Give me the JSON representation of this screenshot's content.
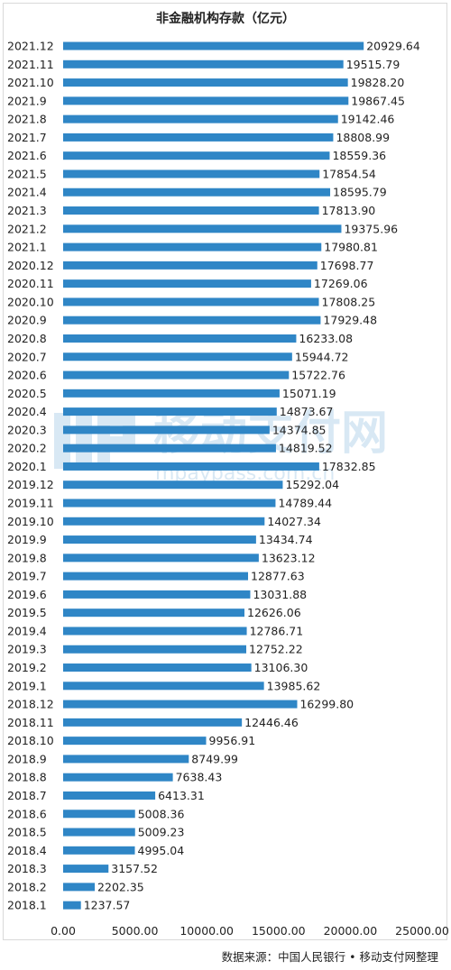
{
  "chart_data": {
    "type": "bar",
    "orientation": "horizontal",
    "title": "非金融机构存款（亿元）",
    "categories": [
      "2021.12",
      "2021.11",
      "2021.10",
      "2021.9",
      "2021.8",
      "2021.7",
      "2021.6",
      "2021.5",
      "2021.4",
      "2021.3",
      "2021.2",
      "2021.1",
      "2020.12",
      "2020.11",
      "2020.10",
      "2020.9",
      "2020.8",
      "2020.7",
      "2020.6",
      "2020.5",
      "2020.4",
      "2020.3",
      "2020.2",
      "2020.1",
      "2019.12",
      "2019.11",
      "2019.10",
      "2019.9",
      "2019.8",
      "2019.7",
      "2019.6",
      "2019.5",
      "2019.4",
      "2019.3",
      "2019.2",
      "2019.1",
      "2018.12",
      "2018.11",
      "2018.10",
      "2018.9",
      "2018.8",
      "2018.7",
      "2018.6",
      "2018.5",
      "2018.4",
      "2018.3",
      "2018.2",
      "2018.1"
    ],
    "values": [
      20929.64,
      19515.79,
      19828.2,
      19867.45,
      19142.46,
      18808.99,
      18559.36,
      17854.54,
      18595.79,
      17813.9,
      19375.96,
      17980.81,
      17698.77,
      17269.06,
      17808.25,
      17929.48,
      16233.08,
      15944.72,
      15722.76,
      15071.19,
      14873.67,
      14374.85,
      14819.52,
      17832.85,
      15292.04,
      14789.44,
      14027.34,
      13434.74,
      13623.12,
      12877.63,
      13031.88,
      12626.06,
      12786.71,
      12752.22,
      13106.3,
      13985.62,
      16299.8,
      12446.46,
      9956.91,
      8749.99,
      7638.43,
      6413.31,
      5008.36,
      5009.23,
      4995.04,
      3157.52,
      2202.35,
      1237.57
    ],
    "value_labels": [
      "20929.64",
      "19515.79",
      "19828.20",
      "19867.45",
      "19142.46",
      "18808.99",
      "18559.36",
      "17854.54",
      "18595.79",
      "17813.90",
      "19375.96",
      "17980.81",
      "17698.77",
      "17269.06",
      "17808.25",
      "17929.48",
      "16233.08",
      "15944.72",
      "15722.76",
      "15071.19",
      "14873.67",
      "14374.85",
      "14819.52",
      "17832.85",
      "15292.04",
      "14789.44",
      "14027.34",
      "13434.74",
      "13623.12",
      "12877.63",
      "13031.88",
      "12626.06",
      "12786.71",
      "12752.22",
      "13106.30",
      "13985.62",
      "16299.80",
      "12446.46",
      "9956.91",
      "8749.99",
      "7638.43",
      "6413.31",
      "5008.36",
      "5009.23",
      "4995.04",
      "3157.52",
      "2202.35",
      "1237.57"
    ],
    "x_ticks": [
      "0.00",
      "5000.00",
      "10000.00",
      "15000.00",
      "20000.00",
      "25000.00"
    ],
    "xlim": [
      0,
      25000
    ],
    "grid": false,
    "legend": "none",
    "bar_color": "#2f86c6"
  },
  "watermark": {
    "text": "移动支付网",
    "subtext": "mpaypass.com.cn"
  },
  "source_note": "数据来源：中国人民银行 • 移动支付网整理"
}
